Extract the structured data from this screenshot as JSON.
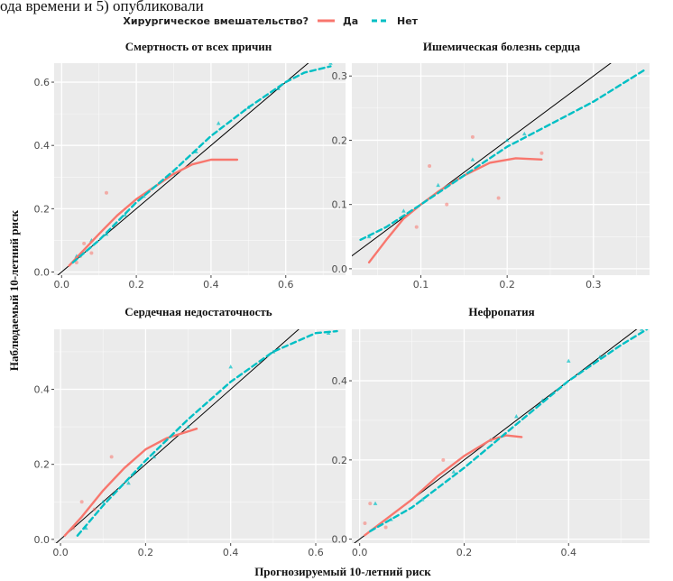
{
  "page_text": {
    "cropped_caption": "ода времени и 5) опубликовали"
  },
  "legend": {
    "title": "Хирургическое вмешательство?",
    "items": [
      {
        "label": "Да",
        "color": "#f8766d",
        "linestyle": "solid"
      },
      {
        "label": "Нет",
        "color": "#00bfc4",
        "linestyle": "dashed"
      }
    ],
    "placement": "top"
  },
  "figure": {
    "xlabel": "Прогнозируемый 10-летний риск",
    "ylabel": "Наблюдаемый 10-летний риск",
    "panel_background": "#ebebeb",
    "grid_color": "#ffffff",
    "reference_line_color": "#000000"
  },
  "chart_data": [
    {
      "type": "line",
      "title": "Смертность от всех причин",
      "xlim": [
        -0.02,
        0.76
      ],
      "ylim": [
        -0.01,
        0.66
      ],
      "x_ticks": [
        0.0,
        0.2,
        0.4,
        0.6
      ],
      "x_tick_labels": [
        "0.0",
        "0.2",
        "0.4",
        "0.6"
      ],
      "y_ticks": [
        0.0,
        0.2,
        0.4,
        0.6
      ],
      "y_tick_labels": [
        "0.0",
        "0.2",
        "0.4",
        "0.6"
      ],
      "reference_line": "y = x",
      "series": [
        {
          "name": "Да",
          "x": [
            0.02,
            0.06,
            0.1,
            0.15,
            0.2,
            0.25,
            0.3,
            0.35,
            0.4,
            0.47
          ],
          "y": [
            0.02,
            0.07,
            0.12,
            0.18,
            0.23,
            0.27,
            0.31,
            0.34,
            0.355,
            0.355
          ]
        },
        {
          "name": "Нет",
          "x": [
            0.03,
            0.07,
            0.1,
            0.15,
            0.2,
            0.3,
            0.4,
            0.5,
            0.6,
            0.65,
            0.72
          ],
          "y": [
            0.03,
            0.07,
            0.1,
            0.16,
            0.22,
            0.32,
            0.43,
            0.52,
            0.6,
            0.63,
            0.65
          ]
        }
      ],
      "points": [
        {
          "series": "Да",
          "x": 0.04,
          "y": 0.03
        },
        {
          "series": "Да",
          "x": 0.06,
          "y": 0.09
        },
        {
          "series": "Да",
          "x": 0.08,
          "y": 0.06
        },
        {
          "series": "Да",
          "x": 0.12,
          "y": 0.25
        },
        {
          "series": "Да",
          "x": 0.05,
          "y": 0.05
        },
        {
          "series": "Нет",
          "x": 0.04,
          "y": 0.05
        },
        {
          "series": "Нет",
          "x": 0.08,
          "y": 0.1
        },
        {
          "series": "Нет",
          "x": 0.12,
          "y": 0.12
        },
        {
          "series": "Нет",
          "x": 0.17,
          "y": 0.18
        },
        {
          "series": "Нет",
          "x": 0.22,
          "y": 0.24
        },
        {
          "series": "Нет",
          "x": 0.3,
          "y": 0.31
        },
        {
          "series": "Нет",
          "x": 0.36,
          "y": 0.38
        },
        {
          "series": "Нет",
          "x": 0.42,
          "y": 0.47
        },
        {
          "series": "Нет",
          "x": 0.5,
          "y": 0.52
        },
        {
          "series": "Нет",
          "x": 0.58,
          "y": 0.58
        },
        {
          "series": "Нет",
          "x": 0.72,
          "y": 0.66
        }
      ]
    },
    {
      "type": "line",
      "title": "Ишемическая болезнь сердца",
      "xlim": [
        0.02,
        0.365
      ],
      "ylim": [
        -0.01,
        0.32
      ],
      "x_ticks": [
        0.1,
        0.2,
        0.3
      ],
      "x_tick_labels": [
        "0.1",
        "0.2",
        "0.3"
      ],
      "y_ticks": [
        0.0,
        0.1,
        0.2,
        0.3
      ],
      "y_tick_labels": [
        "0.0",
        "0.1",
        "0.2",
        "0.3"
      ],
      "reference_line": "y = x",
      "series": [
        {
          "name": "Да",
          "x": [
            0.04,
            0.06,
            0.08,
            0.1,
            0.12,
            0.15,
            0.18,
            0.21,
            0.24
          ],
          "y": [
            0.01,
            0.045,
            0.078,
            0.1,
            0.12,
            0.145,
            0.165,
            0.172,
            0.17
          ]
        },
        {
          "name": "Нет",
          "x": [
            0.03,
            0.06,
            0.1,
            0.15,
            0.2,
            0.25,
            0.3,
            0.36
          ],
          "y": [
            0.045,
            0.065,
            0.1,
            0.145,
            0.19,
            0.225,
            0.26,
            0.31
          ]
        }
      ],
      "points": [
        {
          "series": "Да",
          "x": 0.11,
          "y": 0.16
        },
        {
          "series": "Да",
          "x": 0.16,
          "y": 0.205
        },
        {
          "series": "Да",
          "x": 0.19,
          "y": 0.11
        },
        {
          "series": "Да",
          "x": 0.095,
          "y": 0.065
        },
        {
          "series": "Да",
          "x": 0.13,
          "y": 0.1
        },
        {
          "series": "Да",
          "x": 0.24,
          "y": 0.18
        },
        {
          "series": "Нет",
          "x": 0.04,
          "y": 0.05
        },
        {
          "series": "Нет",
          "x": 0.08,
          "y": 0.09
        },
        {
          "series": "Нет",
          "x": 0.12,
          "y": 0.13
        },
        {
          "series": "Нет",
          "x": 0.16,
          "y": 0.17
        },
        {
          "series": "Нет",
          "x": 0.2,
          "y": 0.2
        },
        {
          "series": "Нет",
          "x": 0.22,
          "y": 0.21
        }
      ]
    },
    {
      "type": "line",
      "title": "Сердечная недостаточность",
      "xlim": [
        -0.015,
        0.67
      ],
      "ylim": [
        -0.01,
        0.56
      ],
      "x_ticks": [
        0.0,
        0.2,
        0.4,
        0.6
      ],
      "x_tick_labels": [
        "0.0",
        "0.2",
        "0.4",
        "0.6"
      ],
      "y_ticks": [
        0.0,
        0.2,
        0.4
      ],
      "y_tick_labels": [
        "0.0",
        "0.2",
        "0.4"
      ],
      "reference_line": "y = x",
      "series": [
        {
          "name": "Да",
          "x": [
            0.01,
            0.05,
            0.1,
            0.15,
            0.2,
            0.25,
            0.32
          ],
          "y": [
            0.01,
            0.06,
            0.13,
            0.19,
            0.24,
            0.27,
            0.295
          ]
        },
        {
          "name": "Нет",
          "x": [
            0.04,
            0.1,
            0.15,
            0.2,
            0.3,
            0.4,
            0.5,
            0.6,
            0.65
          ],
          "y": [
            0.01,
            0.09,
            0.15,
            0.21,
            0.32,
            0.42,
            0.5,
            0.55,
            0.555
          ]
        }
      ],
      "points": [
        {
          "series": "Да",
          "x": 0.05,
          "y": 0.1
        },
        {
          "series": "Да",
          "x": 0.12,
          "y": 0.22
        },
        {
          "series": "Да",
          "x": 0.03,
          "y": 0.03
        },
        {
          "series": "Да",
          "x": 0.08,
          "y": 0.08
        },
        {
          "series": "Нет",
          "x": 0.06,
          "y": 0.03
        },
        {
          "series": "Нет",
          "x": 0.1,
          "y": 0.1
        },
        {
          "series": "Нет",
          "x": 0.16,
          "y": 0.15
        },
        {
          "series": "Нет",
          "x": 0.22,
          "y": 0.22
        },
        {
          "series": "Нет",
          "x": 0.3,
          "y": 0.3
        },
        {
          "series": "Нет",
          "x": 0.4,
          "y": 0.46
        },
        {
          "series": "Нет",
          "x": 0.5,
          "y": 0.5
        },
        {
          "series": "Нет",
          "x": 0.63,
          "y": 0.55
        }
      ]
    },
    {
      "type": "line",
      "title": "Нефропатия",
      "xlim": [
        -0.015,
        0.555
      ],
      "ylim": [
        -0.01,
        0.53
      ],
      "x_ticks": [
        0.0,
        0.2,
        0.4
      ],
      "x_tick_labels": [
        "0.0",
        "0.2",
        "0.4"
      ],
      "y_ticks": [
        0.0,
        0.2,
        0.4
      ],
      "y_tick_labels": [
        "0.0",
        "0.2",
        "0.4"
      ],
      "reference_line": "y = x",
      "series": [
        {
          "name": "Да",
          "x": [
            0.01,
            0.05,
            0.1,
            0.15,
            0.2,
            0.25,
            0.28,
            0.31
          ],
          "y": [
            0.01,
            0.05,
            0.1,
            0.16,
            0.21,
            0.25,
            0.262,
            0.258
          ]
        },
        {
          "name": "Нет",
          "x": [
            0.02,
            0.1,
            0.2,
            0.3,
            0.4,
            0.5,
            0.55
          ],
          "y": [
            0.02,
            0.08,
            0.18,
            0.29,
            0.4,
            0.49,
            0.53
          ]
        }
      ],
      "points": [
        {
          "series": "Да",
          "x": 0.02,
          "y": 0.09
        },
        {
          "series": "Да",
          "x": 0.01,
          "y": 0.04
        },
        {
          "series": "Да",
          "x": 0.16,
          "y": 0.2
        },
        {
          "series": "Да",
          "x": 0.05,
          "y": 0.03
        },
        {
          "series": "Нет",
          "x": 0.03,
          "y": 0.09
        },
        {
          "series": "Нет",
          "x": 0.06,
          "y": 0.05
        },
        {
          "series": "Нет",
          "x": 0.12,
          "y": 0.1
        },
        {
          "series": "Нет",
          "x": 0.18,
          "y": 0.17
        },
        {
          "series": "Нет",
          "x": 0.25,
          "y": 0.25
        },
        {
          "series": "Нет",
          "x": 0.3,
          "y": 0.31
        },
        {
          "series": "Нет",
          "x": 0.35,
          "y": 0.35
        },
        {
          "series": "Нет",
          "x": 0.4,
          "y": 0.45
        },
        {
          "series": "Нет",
          "x": 0.46,
          "y": 0.46
        },
        {
          "series": "Нет",
          "x": 0.54,
          "y": 0.53
        }
      ]
    }
  ]
}
